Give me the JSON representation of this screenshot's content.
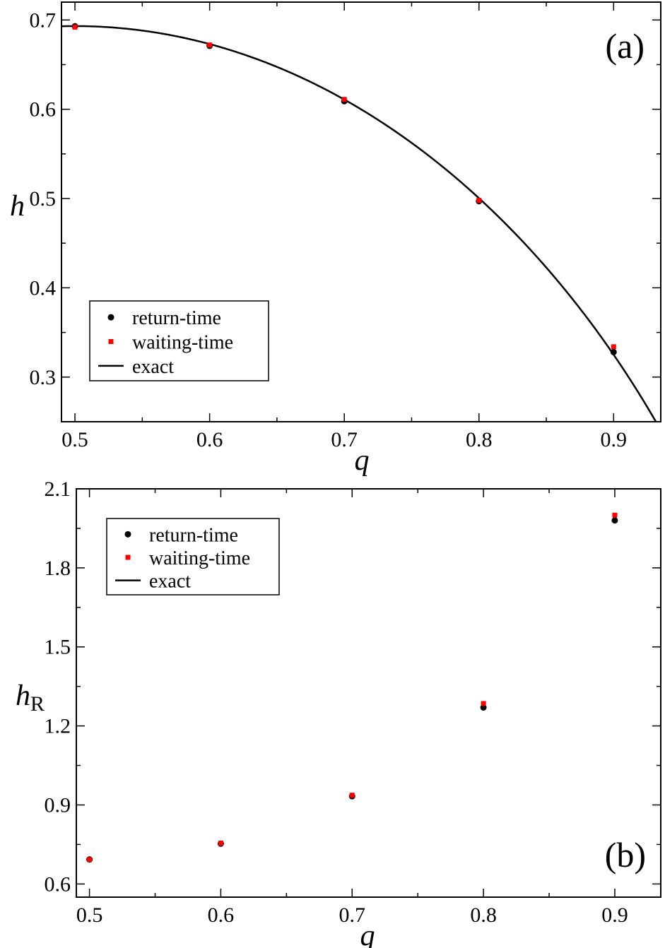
{
  "chart_data": [
    {
      "type": "scatter",
      "panel_label": "(a)",
      "xlabel": "q",
      "ylabel": "h",
      "ylabel_sub": "",
      "xlim": [
        0.49,
        0.935
      ],
      "ylim": [
        0.25,
        0.72
      ],
      "xticks": [
        0.5,
        0.6,
        0.7,
        0.8,
        0.9
      ],
      "xtick_labels": [
        "0.5",
        "0.6",
        "0.7",
        "0.8",
        "0.9"
      ],
      "yticks": [
        0.3,
        0.4,
        0.5,
        0.6,
        0.7
      ],
      "ytick_labels": [
        "0.3",
        "0.4",
        "0.5",
        "0.6",
        "0.7"
      ],
      "legend_position": "bottom-left",
      "series": [
        {
          "name": "return-time",
          "kind": "points",
          "marker": "circle",
          "color": "#000000",
          "x": [
            0.5,
            0.6,
            0.7,
            0.8,
            0.9
          ],
          "y": [
            0.693,
            0.671,
            0.609,
            0.497,
            0.328
          ]
        },
        {
          "name": "waiting-time",
          "kind": "points",
          "marker": "square",
          "color": "#ff0000",
          "x": [
            0.5,
            0.6,
            0.7,
            0.8,
            0.9
          ],
          "y": [
            0.692,
            0.672,
            0.611,
            0.498,
            0.334
          ]
        },
        {
          "name": "exact",
          "kind": "line",
          "color": "#000000",
          "function": "shannon",
          "x_range": [
            0.49,
            0.935
          ]
        }
      ]
    },
    {
      "type": "scatter",
      "panel_label": "(b)",
      "xlabel": "q",
      "ylabel": "h",
      "ylabel_sub": "R",
      "xlim": [
        0.49,
        0.935
      ],
      "ylim": [
        0.55,
        2.1
      ],
      "xticks": [
        0.5,
        0.6,
        0.7,
        0.8,
        0.9
      ],
      "xtick_labels": [
        "0.5",
        "0.6",
        "0.7",
        "0.8",
        "0.9"
      ],
      "yticks": [
        0.6,
        0.9,
        1.2,
        1.5,
        1.8,
        2.1
      ],
      "ytick_labels": [
        "0.6",
        "0.9",
        "1.2",
        "1.5",
        "1.8",
        "2.1"
      ],
      "legend_position": "top-left",
      "series": [
        {
          "name": "return-time",
          "kind": "points",
          "marker": "circle",
          "color": "#000000",
          "x": [
            0.5,
            0.6,
            0.7,
            0.8,
            0.9
          ],
          "y": [
            0.693,
            0.753,
            0.933,
            1.27,
            1.98
          ]
        },
        {
          "name": "waiting-time",
          "kind": "points",
          "marker": "square",
          "color": "#ff0000",
          "x": [
            0.5,
            0.6,
            0.7,
            0.8,
            0.9
          ],
          "y": [
            0.693,
            0.755,
            0.937,
            1.285,
            2.0
          ]
        },
        {
          "name": "exact",
          "kind": "line",
          "color": "#000000",
          "function": "renyi2",
          "x_range": [
            0.49,
            0.935
          ]
        }
      ]
    }
  ]
}
